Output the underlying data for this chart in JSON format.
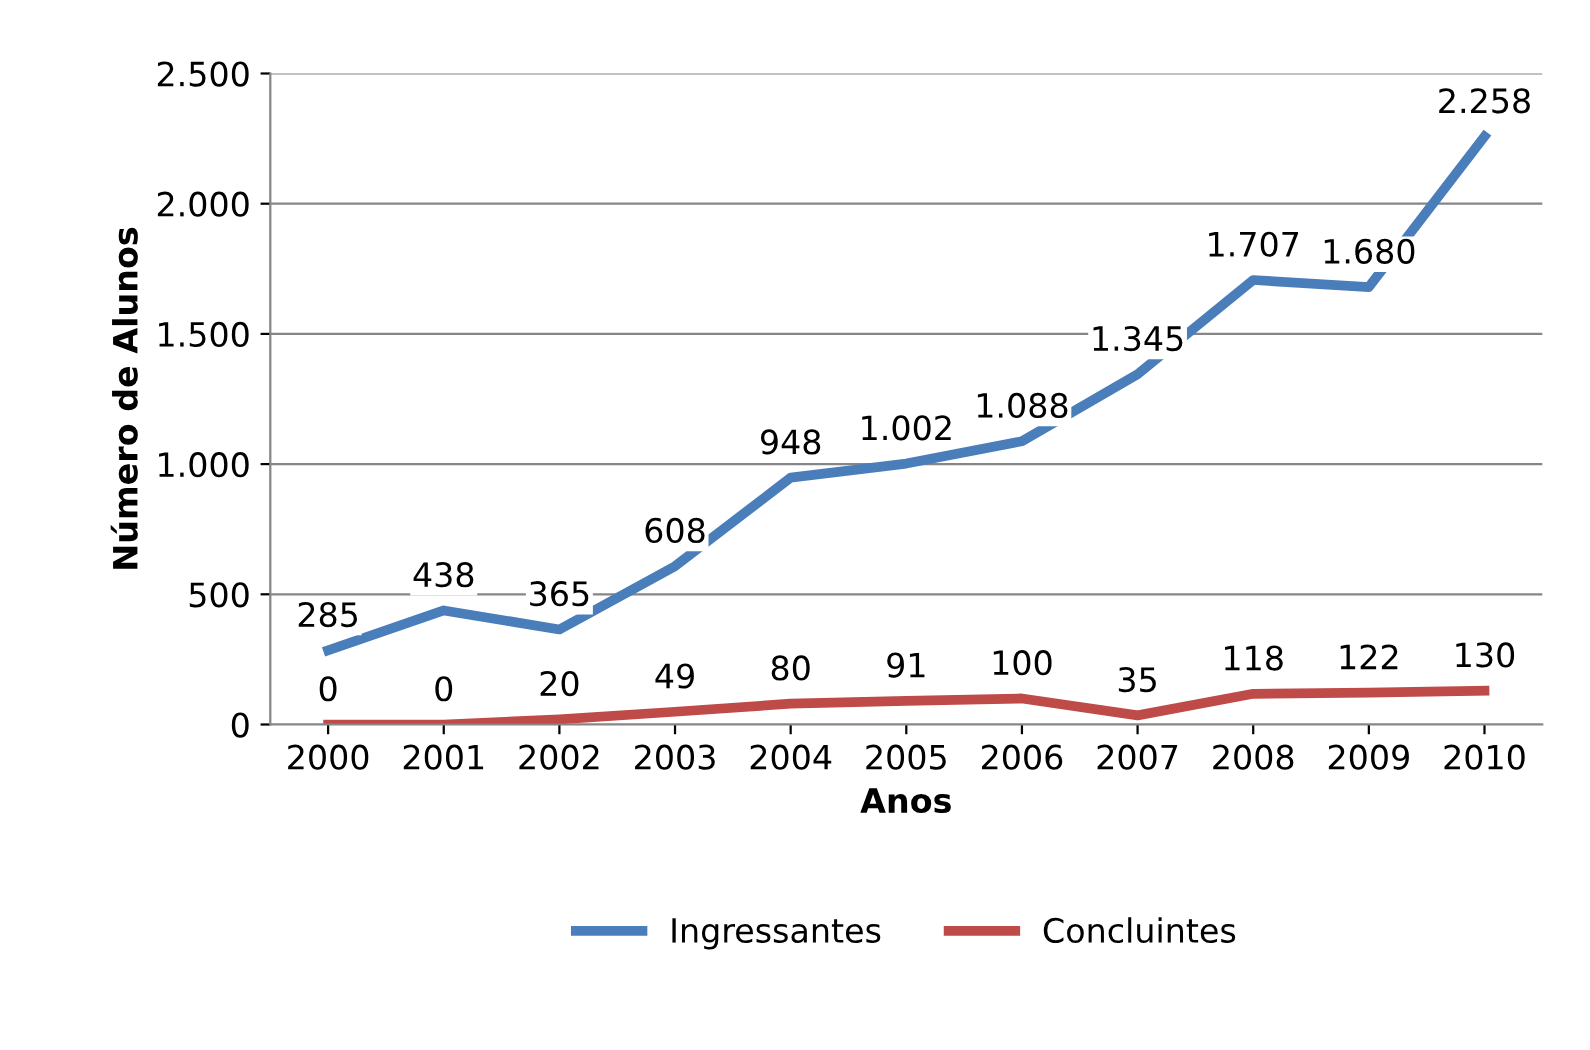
{
  "chart_data": {
    "type": "line",
    "xlabel": "Anos",
    "ylabel": "Número de Alunos",
    "categories": [
      "2000",
      "2001",
      "2002",
      "2003",
      "2004",
      "2005",
      "2006",
      "2007",
      "2008",
      "2009",
      "2010"
    ],
    "series": [
      {
        "name": "Ingressantes",
        "color": "#4a7ebb",
        "values": [
          285,
          438,
          365,
          608,
          948,
          1002,
          1088,
          1345,
          1707,
          1680,
          2258
        ],
        "value_labels": [
          "285",
          "438",
          "365",
          "608",
          "948",
          "1.002",
          "1.088",
          "1.345",
          "1.707",
          "1.680",
          "2.258"
        ]
      },
      {
        "name": "Concluintes",
        "color": "#be4b48",
        "values": [
          0,
          0,
          20,
          49,
          80,
          91,
          100,
          35,
          118,
          122,
          130
        ],
        "value_labels": [
          "0",
          "0",
          "20",
          "49",
          "80",
          "91",
          "100",
          "35",
          "118",
          "122",
          "130"
        ]
      }
    ],
    "ylim": [
      0,
      2500
    ],
    "yticks": [
      0,
      500,
      {
        "value": 1000,
        "label": "1.000"
      },
      {
        "value": 1500,
        "label": "1.500"
      },
      {
        "value": 2000,
        "label": "2.000"
      },
      {
        "value": 2500,
        "label": "2.500"
      }
    ],
    "grid": "y",
    "legend": "bottom",
    "marker": "none",
    "line_style": "solid"
  }
}
